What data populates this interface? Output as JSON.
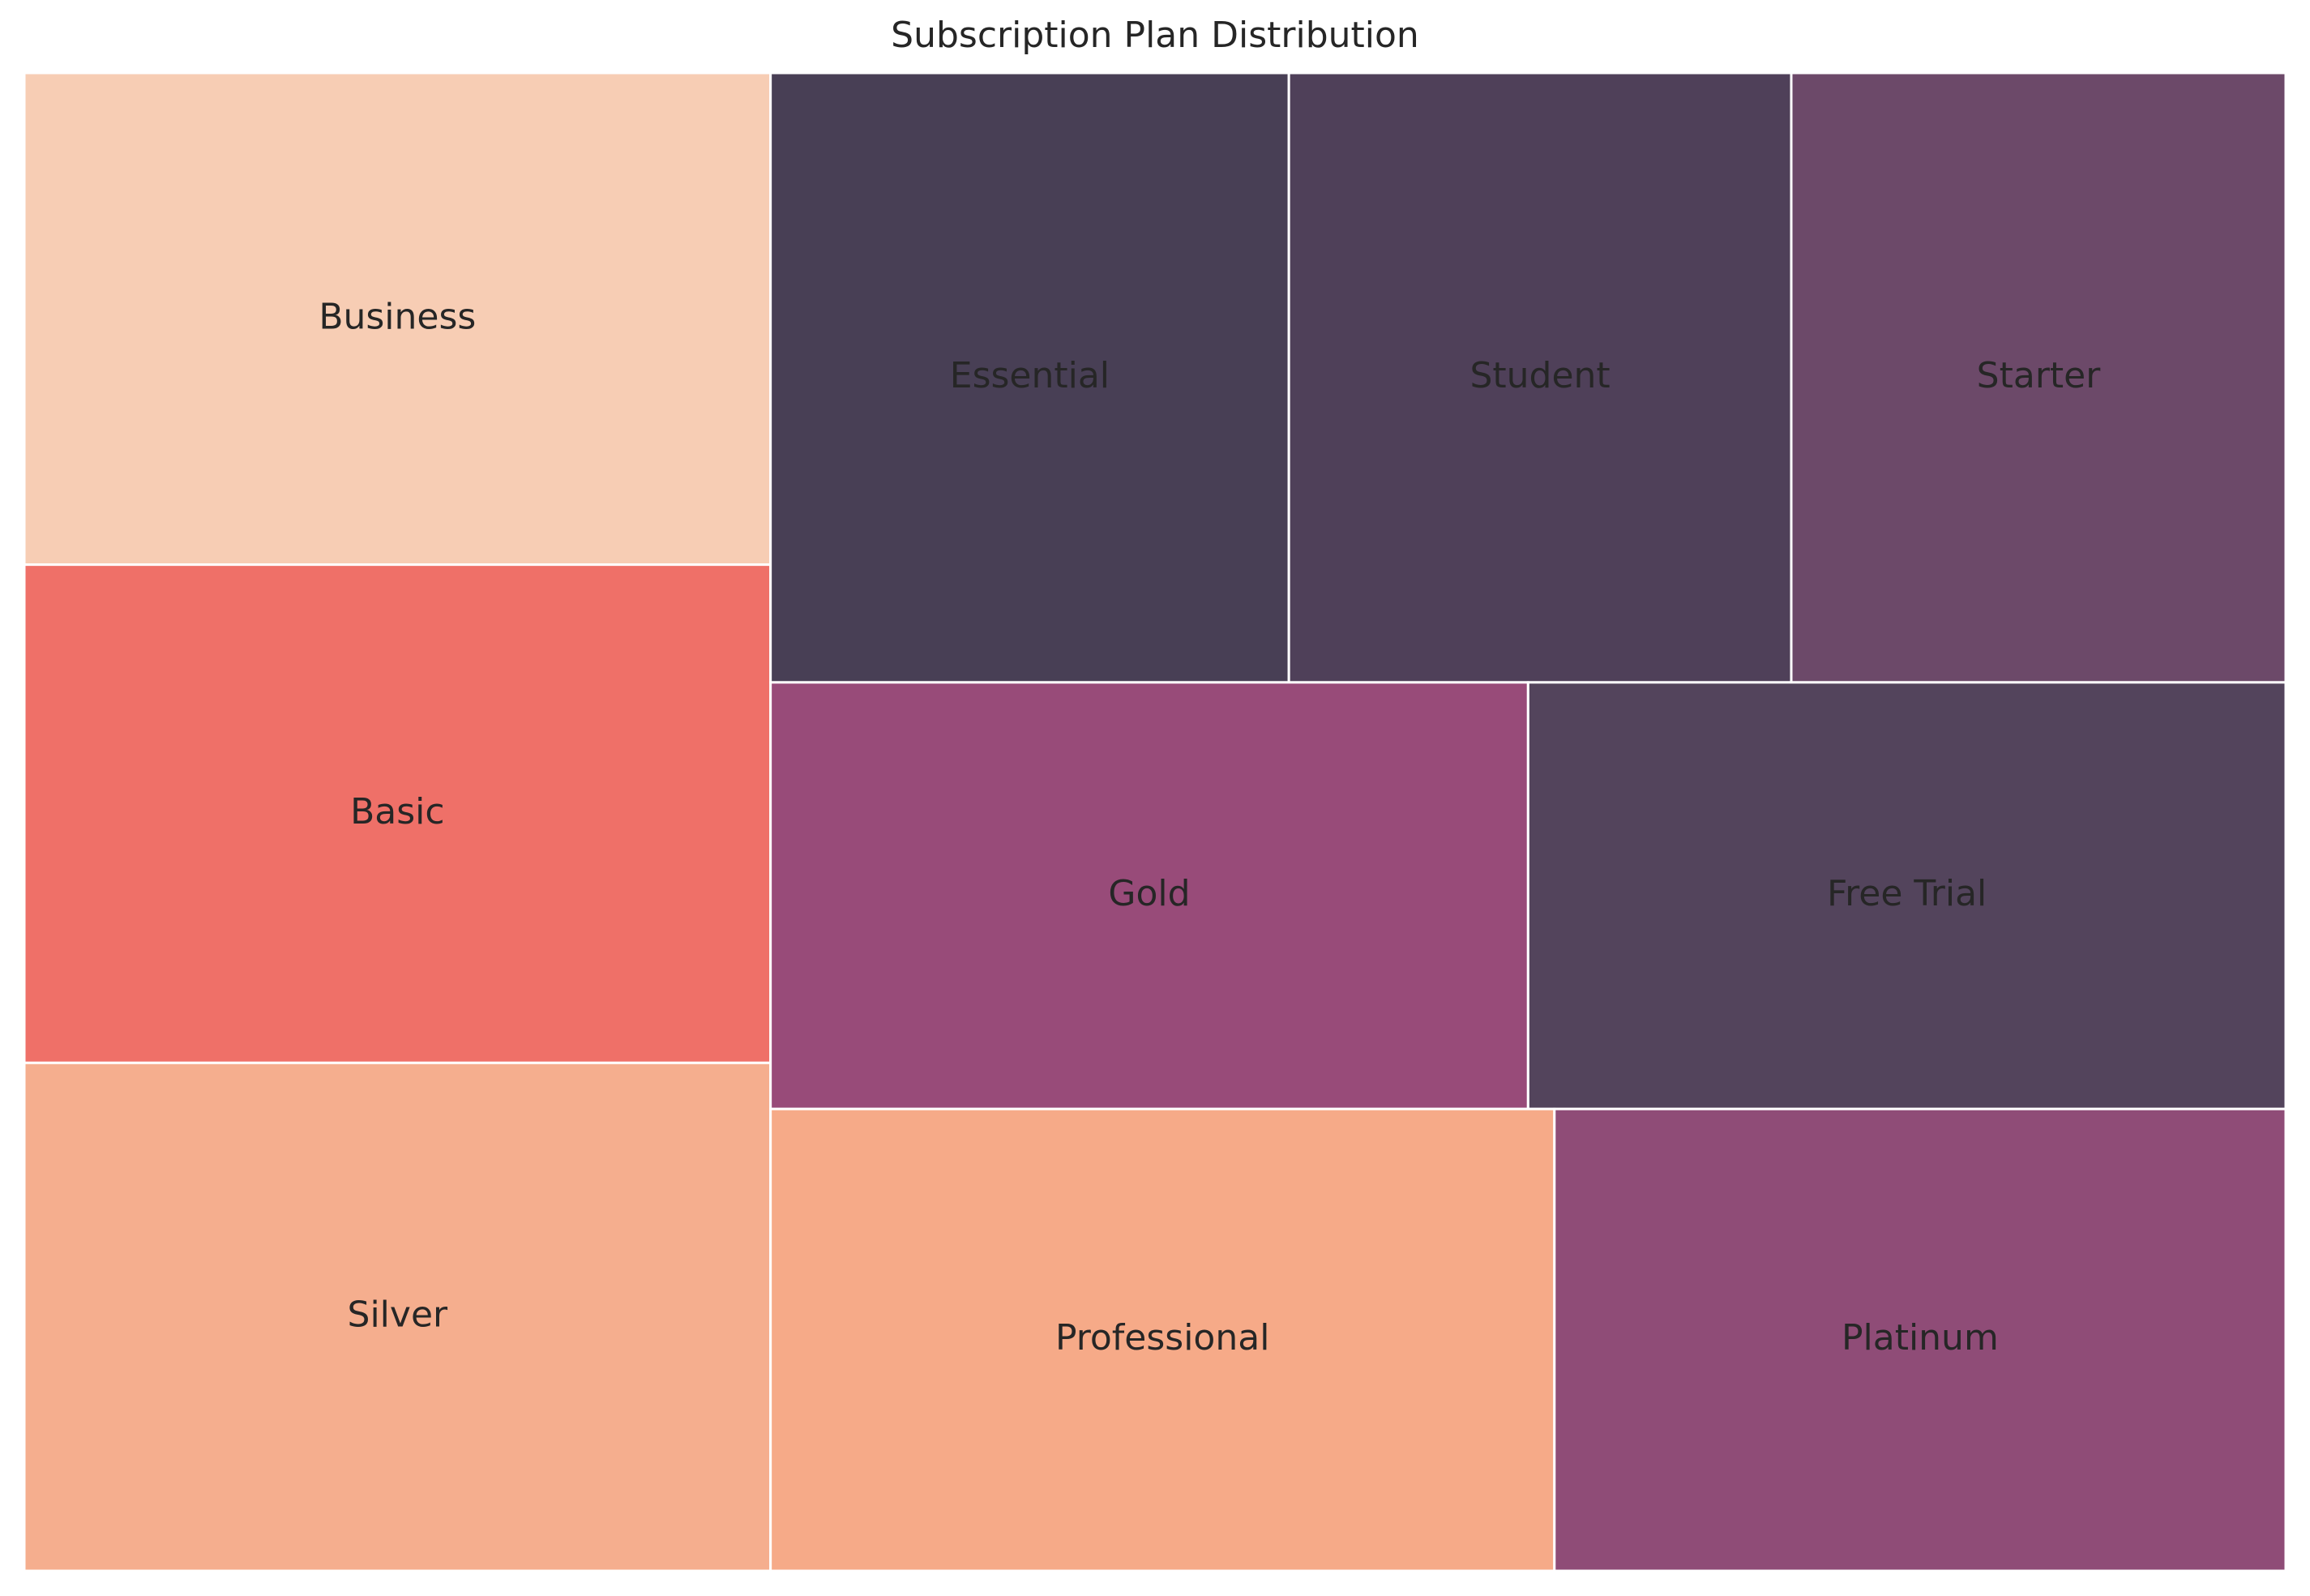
{
  "chart_data": {
    "type": "treemap",
    "title": "Subscription Plan Distribution",
    "grid": false,
    "legend": "none",
    "tiles": [
      {
        "label": "Business",
        "value": 151,
        "color": "#f7cdb4"
      },
      {
        "label": "Basic",
        "value": 153,
        "color": "#ef7068"
      },
      {
        "label": "Silver",
        "value": 156,
        "color": "#f5ae8e"
      },
      {
        "label": "Essential",
        "value": 130,
        "color": "#483f55"
      },
      {
        "label": "Student",
        "value": 126,
        "color": "#4f4059"
      },
      {
        "label": "Starter",
        "value": 124,
        "color": "#6c4969"
      },
      {
        "label": "Gold",
        "value": 133,
        "color": "#984b79"
      },
      {
        "label": "Free Trial",
        "value": 133,
        "color": "#53445c"
      },
      {
        "label": "Professional",
        "value": 149,
        "color": "#f6aa88"
      },
      {
        "label": "Platinum",
        "value": 139,
        "color": "#8f4c77"
      }
    ]
  }
}
